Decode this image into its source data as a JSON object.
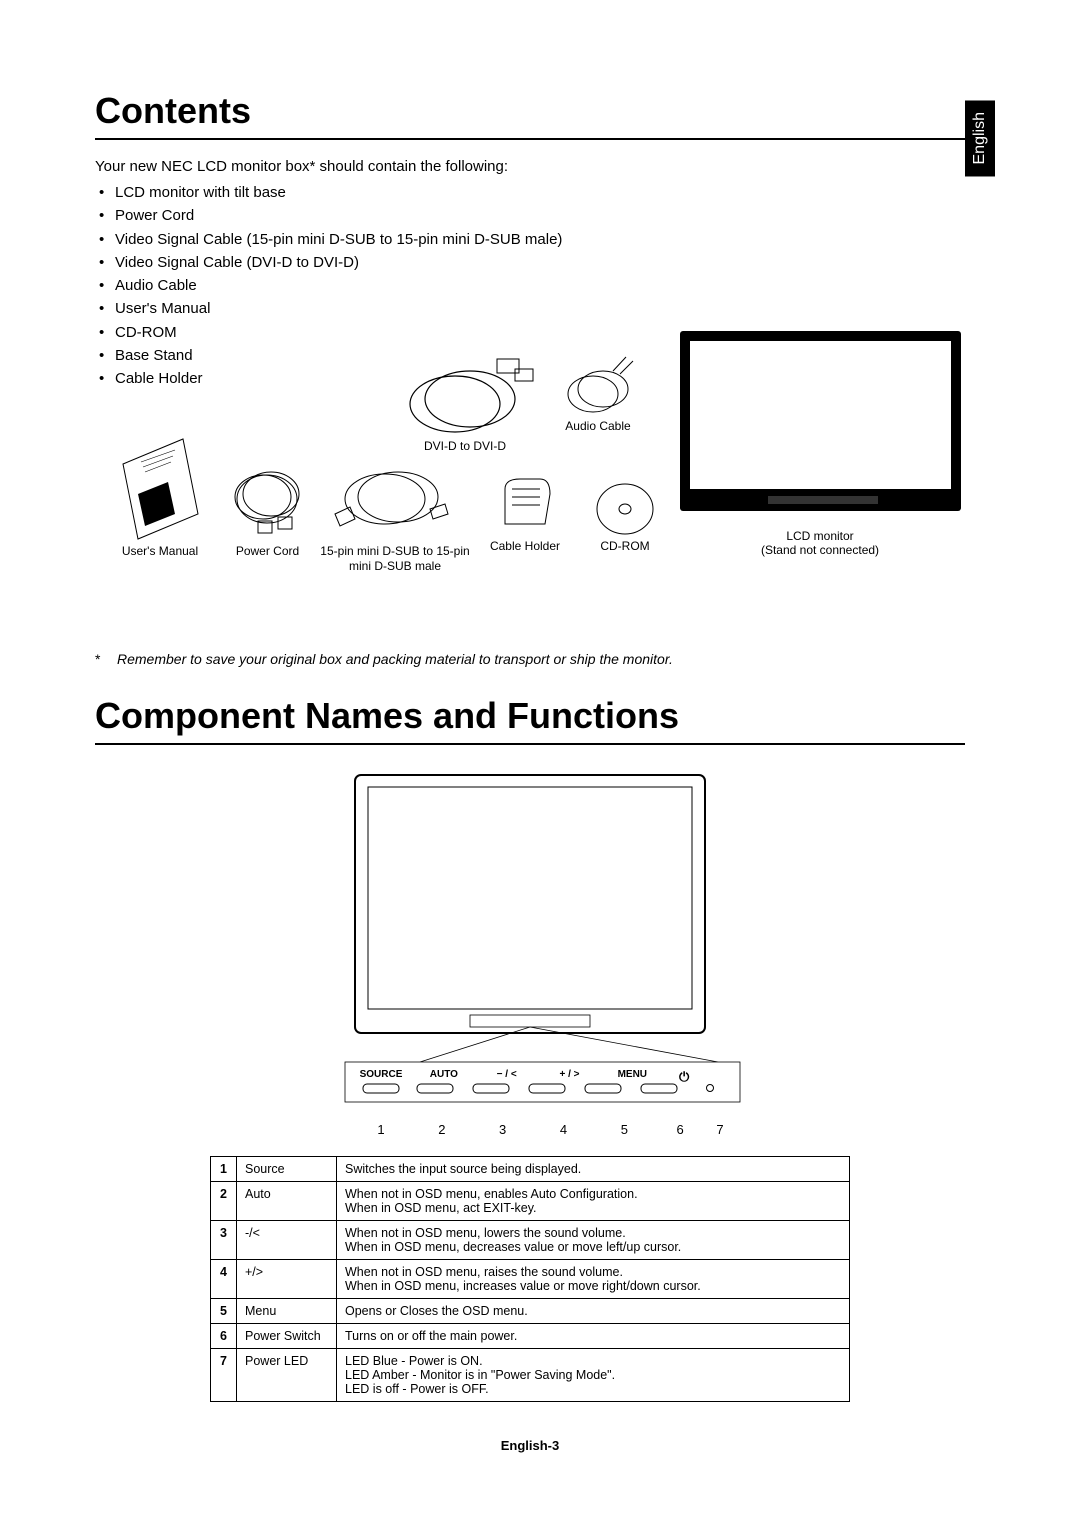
{
  "language_tab": "English",
  "section1_title": "Contents",
  "intro": "Your new NEC LCD monitor box* should contain the following:",
  "contents_items": [
    "LCD monitor with tilt base",
    "Power Cord",
    "Video Signal Cable (15-pin mini D-SUB to 15-pin mini D-SUB male)",
    "Video Signal Cable (DVI-D to DVI-D)",
    "Audio Cable",
    "User's Manual",
    "CD-ROM",
    "Base Stand",
    "Cable Holder"
  ],
  "illus": {
    "dvid_label": "DVI-D to DVI-D",
    "audio_label": "Audio Cable",
    "manual_label": "User's Manual",
    "power_label": "Power Cord",
    "dsub_label": "15-pin mini D-SUB to 15-pin mini D-SUB male",
    "holder_label": "Cable Holder",
    "cdrom_label": "CD-ROM",
    "monitor_label1": "LCD monitor",
    "monitor_label2": "(Stand not connected)"
  },
  "footnote_marker": "*",
  "footnote": "Remember to save your original box and packing material to transport or ship the monitor.",
  "section2_title": "Component Names and Functions",
  "button_bar": {
    "labels": [
      "SOURCE",
      "AUTO",
      "− / <",
      "+ / >",
      "MENU",
      ""
    ],
    "numbers": [
      "1",
      "2",
      "3",
      "4",
      "5",
      "6",
      "7"
    ]
  },
  "functions_table": [
    {
      "n": "1",
      "name": "Source",
      "desc": "Switches the input source being displayed."
    },
    {
      "n": "2",
      "name": "Auto",
      "desc": "When not in OSD menu, enables Auto Configuration.\nWhen in OSD menu, act EXIT-key."
    },
    {
      "n": "3",
      "name": "-/<",
      "desc": "When not in OSD menu, lowers the sound volume.\nWhen in OSD menu, decreases value or move left/up cursor."
    },
    {
      "n": "4",
      "name": "+/>",
      "desc": "When not in OSD menu, raises the sound volume.\nWhen in OSD menu, increases value or move right/down cursor."
    },
    {
      "n": "5",
      "name": "Menu",
      "desc": "Opens or Closes the OSD menu."
    },
    {
      "n": "6",
      "name": "Power Switch",
      "desc": "Turns on or off the main power."
    },
    {
      "n": "7",
      "name": "Power LED",
      "desc": "LED Blue - Power is ON.\nLED Amber - Monitor is in \"Power Saving Mode\".\nLED is off - Power is OFF."
    }
  ],
  "page_footer": "English-3",
  "colors": {
    "text": "#000000",
    "bg": "#ffffff",
    "tab_bg": "#000000",
    "tab_fg": "#ffffff"
  }
}
